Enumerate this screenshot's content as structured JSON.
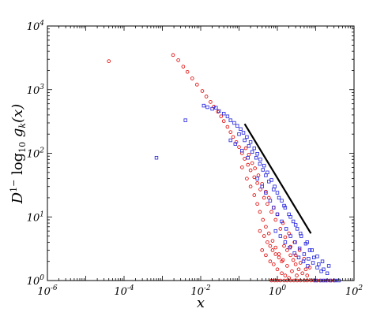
{
  "chart_data": {
    "type": "scatter",
    "xscale": "log",
    "yscale": "log",
    "xlim": [
      1e-06,
      100
    ],
    "ylim": [
      1,
      10000
    ],
    "grid": false,
    "xlabel": "x",
    "ylabel": "D^{1-} log_{10} g_k(x)",
    "x_ticks": [
      {
        "value": 1e-06,
        "base": "10",
        "exp": "-6"
      },
      {
        "value": 0.0001,
        "base": "10",
        "exp": "-4"
      },
      {
        "value": 0.01,
        "base": "10",
        "exp": "-2"
      },
      {
        "value": 1,
        "base": "10",
        "exp": "0"
      },
      {
        "value": 100,
        "base": "10",
        "exp": "2"
      }
    ],
    "y_ticks": [
      {
        "value": 1,
        "base": "10",
        "exp": "0"
      },
      {
        "value": 10,
        "base": "10",
        "exp": "1"
      },
      {
        "value": 100,
        "base": "10",
        "exp": "2"
      },
      {
        "value": 1000,
        "base": "10",
        "exp": "3"
      },
      {
        "value": 10000,
        "base": "10",
        "exp": "4"
      }
    ],
    "series": [
      {
        "color": "#e00000",
        "marker": "circle",
        "points": [
          [
            4e-05,
            2800
          ],
          [
            0.0019,
            3500
          ],
          [
            0.0026,
            2900
          ],
          [
            0.0035,
            2300
          ],
          [
            0.0045,
            1900
          ],
          [
            0.006,
            1500
          ],
          [
            0.008,
            1200
          ],
          [
            0.011,
            950
          ],
          [
            0.014,
            780
          ],
          [
            0.018,
            640
          ],
          [
            0.022,
            540
          ],
          [
            0.028,
            450
          ],
          [
            0.034,
            380
          ],
          [
            0.04,
            320
          ],
          [
            0.05,
            260
          ],
          [
            0.06,
            215
          ],
          [
            0.07,
            180
          ],
          [
            0.085,
            150
          ],
          [
            0.1,
            125
          ],
          [
            0.12,
            100
          ],
          [
            0.14,
            82
          ],
          [
            0.17,
            66
          ],
          [
            0.2,
            54
          ],
          [
            0.25,
            42
          ],
          [
            0.3,
            34
          ],
          [
            0.36,
            27
          ],
          [
            0.45,
            20
          ],
          [
            0.55,
            16
          ],
          [
            0.7,
            12
          ],
          [
            0.9,
            9
          ],
          [
            1.2,
            6.5
          ],
          [
            1.6,
            4.8
          ],
          [
            2.2,
            3.4
          ],
          [
            3.0,
            2.5
          ],
          [
            4.0,
            1.9
          ],
          [
            5.5,
            1.5
          ],
          [
            0.15,
            120
          ],
          [
            0.18,
            95
          ],
          [
            0.22,
            70
          ],
          [
            0.26,
            58
          ],
          [
            0.32,
            45
          ],
          [
            0.4,
            33
          ],
          [
            0.5,
            25
          ],
          [
            0.6,
            20
          ],
          [
            0.8,
            14
          ],
          [
            1.0,
            11
          ],
          [
            1.4,
            8
          ],
          [
            2.0,
            5.5
          ],
          [
            2.8,
            4
          ],
          [
            3.8,
            3
          ],
          [
            5.0,
            2.2
          ],
          [
            7.0,
            1.6
          ],
          [
            0.12,
            60
          ],
          [
            0.16,
            40
          ],
          [
            0.2,
            30
          ],
          [
            0.25,
            22
          ],
          [
            0.3,
            16
          ],
          [
            0.35,
            12
          ],
          [
            0.42,
            9
          ],
          [
            0.5,
            7
          ],
          [
            0.6,
            5.5
          ],
          [
            0.75,
            4.2
          ],
          [
            0.9,
            3.3
          ],
          [
            1.1,
            2.6
          ],
          [
            1.4,
            2.1
          ],
          [
            1.8,
            1.7
          ],
          [
            2.4,
            1.4
          ],
          [
            3.2,
            1.2
          ],
          [
            0.4,
            3
          ],
          [
            0.5,
            2.5
          ],
          [
            0.65,
            2
          ],
          [
            0.8,
            1.8
          ],
          [
            1.0,
            1.5
          ],
          [
            1.3,
            1.3
          ],
          [
            1.6,
            1.2
          ],
          [
            2.0,
            1.1
          ],
          [
            0.7,
            1
          ],
          [
            0.85,
            1
          ],
          [
            1.0,
            1
          ],
          [
            1.2,
            1
          ],
          [
            1.5,
            1
          ],
          [
            1.8,
            1
          ],
          [
            2.2,
            1
          ],
          [
            2.7,
            1
          ],
          [
            3.3,
            1
          ],
          [
            4.0,
            1
          ],
          [
            5.0,
            1
          ],
          [
            6.0,
            1
          ],
          [
            7.5,
            1
          ],
          [
            9.0,
            1
          ],
          [
            11,
            1
          ],
          [
            13,
            1
          ],
          [
            16,
            1
          ],
          [
            20,
            1
          ],
          [
            25,
            1
          ],
          [
            30,
            1
          ],
          [
            0.35,
            6
          ],
          [
            0.45,
            5
          ],
          [
            0.55,
            4
          ],
          [
            0.65,
            3.5
          ],
          [
            0.75,
            3
          ],
          [
            0.9,
            2.6
          ],
          [
            1.1,
            2.3
          ],
          [
            1.3,
            2.0
          ],
          [
            1.5,
            3.5
          ],
          [
            1.8,
            3.0
          ],
          [
            2.2,
            2.5
          ],
          [
            2.6,
            2.1
          ],
          [
            3.0,
            1.8
          ],
          [
            3.6,
            1.5
          ],
          [
            4.5,
            1.3
          ],
          [
            6.0,
            1.2
          ]
        ]
      },
      {
        "color": "#2020dd",
        "marker": "square",
        "points": [
          [
            0.0007,
            85
          ],
          [
            0.004,
            330
          ],
          [
            0.012,
            560
          ],
          [
            0.015,
            530
          ],
          [
            0.02,
            500
          ],
          [
            0.025,
            520
          ],
          [
            0.03,
            460
          ],
          [
            0.04,
            420
          ],
          [
            0.05,
            380
          ],
          [
            0.06,
            330
          ],
          [
            0.075,
            300
          ],
          [
            0.09,
            270
          ],
          [
            0.11,
            240
          ],
          [
            0.13,
            210
          ],
          [
            0.16,
            180
          ],
          [
            0.2,
            150
          ],
          [
            0.25,
            120
          ],
          [
            0.3,
            98
          ],
          [
            0.36,
            80
          ],
          [
            0.45,
            64
          ],
          [
            0.55,
            50
          ],
          [
            0.7,
            38
          ],
          [
            0.85,
            30
          ],
          [
            1.0,
            24
          ],
          [
            1.3,
            18
          ],
          [
            1.6,
            14
          ],
          [
            2.0,
            11
          ],
          [
            2.6,
            8.5
          ],
          [
            3.3,
            6.5
          ],
          [
            4.2,
            5
          ],
          [
            5.5,
            3.8
          ],
          [
            7.0,
            3
          ],
          [
            9.0,
            2.3
          ],
          [
            12,
            1.8
          ],
          [
            16,
            1.5
          ],
          [
            20,
            1.3
          ],
          [
            0.1,
            200
          ],
          [
            0.14,
            160
          ],
          [
            0.18,
            130
          ],
          [
            0.22,
            105
          ],
          [
            0.28,
            85
          ],
          [
            0.35,
            68
          ],
          [
            0.42,
            55
          ],
          [
            0.5,
            45
          ],
          [
            0.6,
            36
          ],
          [
            0.8,
            27
          ],
          [
            1.1,
            20
          ],
          [
            1.5,
            15
          ],
          [
            2.2,
            10
          ],
          [
            3.0,
            7.5
          ],
          [
            4.0,
            5.5
          ],
          [
            6.0,
            4
          ],
          [
            8.0,
            3
          ],
          [
            11,
            2.4
          ],
          [
            15,
            2
          ],
          [
            22,
            1.7
          ],
          [
            0.3,
            40
          ],
          [
            0.4,
            30
          ],
          [
            0.5,
            24
          ],
          [
            0.65,
            18
          ],
          [
            0.8,
            14
          ],
          [
            1.0,
            11
          ],
          [
            1.3,
            8.5
          ],
          [
            1.7,
            6.5
          ],
          [
            2.2,
            5
          ],
          [
            2.9,
            4
          ],
          [
            3.8,
            3.2
          ],
          [
            5.0,
            2.6
          ],
          [
            6.5,
            2.2
          ],
          [
            8.5,
            1.9
          ],
          [
            11,
            1.6
          ],
          [
            14,
            1.4
          ],
          [
            0.06,
            160
          ],
          [
            0.08,
            140
          ],
          [
            0.12,
            110
          ],
          [
            0.17,
            85
          ],
          [
            0.9,
            6
          ],
          [
            1.2,
            5
          ],
          [
            1.6,
            4
          ],
          [
            2.1,
            3.3
          ],
          [
            2.8,
            2.7
          ],
          [
            3.6,
            2.3
          ],
          [
            4.8,
            2.0
          ],
          [
            6.2,
            1.7
          ],
          [
            10,
            1
          ],
          [
            14,
            1
          ],
          [
            18,
            1
          ],
          [
            24,
            1
          ],
          [
            32,
            1
          ],
          [
            40,
            1
          ]
        ]
      }
    ],
    "reference_line": {
      "color": "#000000",
      "from": [
        0.14,
        290
      ],
      "to": [
        7.5,
        5.5
      ]
    }
  }
}
